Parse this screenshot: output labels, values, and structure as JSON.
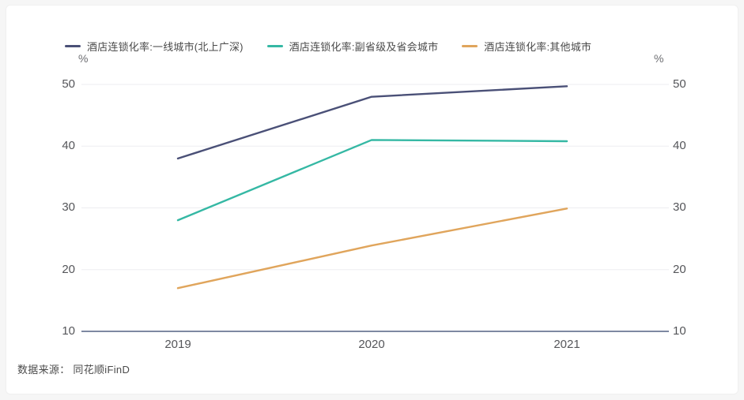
{
  "chart_data": {
    "type": "line",
    "title": "",
    "xlabel": "",
    "ylabel": "%",
    "unit_left": "%",
    "unit_right": "%",
    "categories": [
      "2019",
      "2020",
      "2021"
    ],
    "series": [
      {
        "name": "酒店连锁化率:一线城市(北上广深)",
        "color": "#4a5077",
        "values": [
          38,
          48,
          49.7
        ]
      },
      {
        "name": "酒店连锁化率:副省级及省会城市",
        "color": "#35b8a4",
        "values": [
          28,
          41,
          40.8
        ]
      },
      {
        "name": "酒店连锁化率:其他城市",
        "color": "#e0a55c",
        "values": [
          17,
          23.9,
          29.9
        ]
      }
    ],
    "y_ticks": [
      50,
      40,
      30,
      20,
      10
    ],
    "ylim": [
      10,
      50
    ],
    "grid": true,
    "legend_position": "top",
    "grid_color": "#ededf0",
    "axis_color": "#7e89a2"
  },
  "footer": {
    "source": "数据来源： 同花顺iFinD"
  }
}
